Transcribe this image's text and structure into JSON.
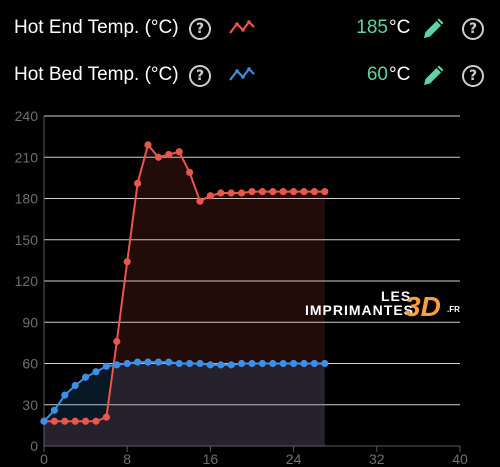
{
  "hot_end": {
    "label": "Hot End Temp. (°C)",
    "value": "185",
    "unit": "°C",
    "icon": "line-chart-icon",
    "color": "#e8574a"
  },
  "hot_bed": {
    "label": "Hot Bed Temp. (°C)",
    "value": "60",
    "unit": "°C",
    "icon": "line-chart-icon",
    "color": "#3d8ee6"
  },
  "help_glyph": "?",
  "accent_color": "#5fd3a3",
  "watermark": {
    "les": "LES",
    "imprimantes": "IMPRIMANTES",
    "three_d": "3D",
    "fr": ".FR"
  },
  "chart_data": {
    "type": "line",
    "title": "",
    "xlabel": "",
    "ylabel": "",
    "xlim": [
      0,
      40
    ],
    "ylim": [
      0,
      240
    ],
    "x_ticks": [
      0,
      8,
      16,
      24,
      32,
      40
    ],
    "y_ticks": [
      0,
      30,
      60,
      90,
      120,
      150,
      180,
      210,
      240
    ],
    "grid": true,
    "series": [
      {
        "key": "hot_end",
        "color": "#e8574a",
        "x": [
          0,
          1,
          2,
          3,
          4,
          5,
          6,
          7,
          8,
          9,
          10,
          11,
          12,
          13,
          14,
          15,
          16,
          17,
          18,
          19,
          20,
          21,
          22,
          23,
          24,
          25,
          26,
          27
        ],
        "y": [
          18,
          18,
          18,
          18,
          18,
          18,
          21,
          76,
          134,
          191,
          219,
          210,
          212,
          214,
          199,
          178,
          182,
          184,
          184,
          184,
          185,
          185,
          185,
          185,
          185,
          185,
          185,
          185
        ]
      },
      {
        "key": "hot_bed",
        "color": "#3d8ee6",
        "x": [
          0,
          1,
          2,
          3,
          4,
          5,
          6,
          7,
          8,
          9,
          10,
          11,
          12,
          13,
          14,
          15,
          16,
          17,
          18,
          19,
          20,
          21,
          22,
          23,
          24,
          25,
          26,
          27
        ],
        "y": [
          18,
          26,
          37,
          44,
          50,
          54,
          58,
          59,
          60,
          61,
          61,
          61,
          61,
          60,
          60,
          60,
          59,
          59,
          59,
          60,
          60,
          60,
          60,
          60,
          60,
          60,
          60,
          60
        ]
      }
    ]
  }
}
